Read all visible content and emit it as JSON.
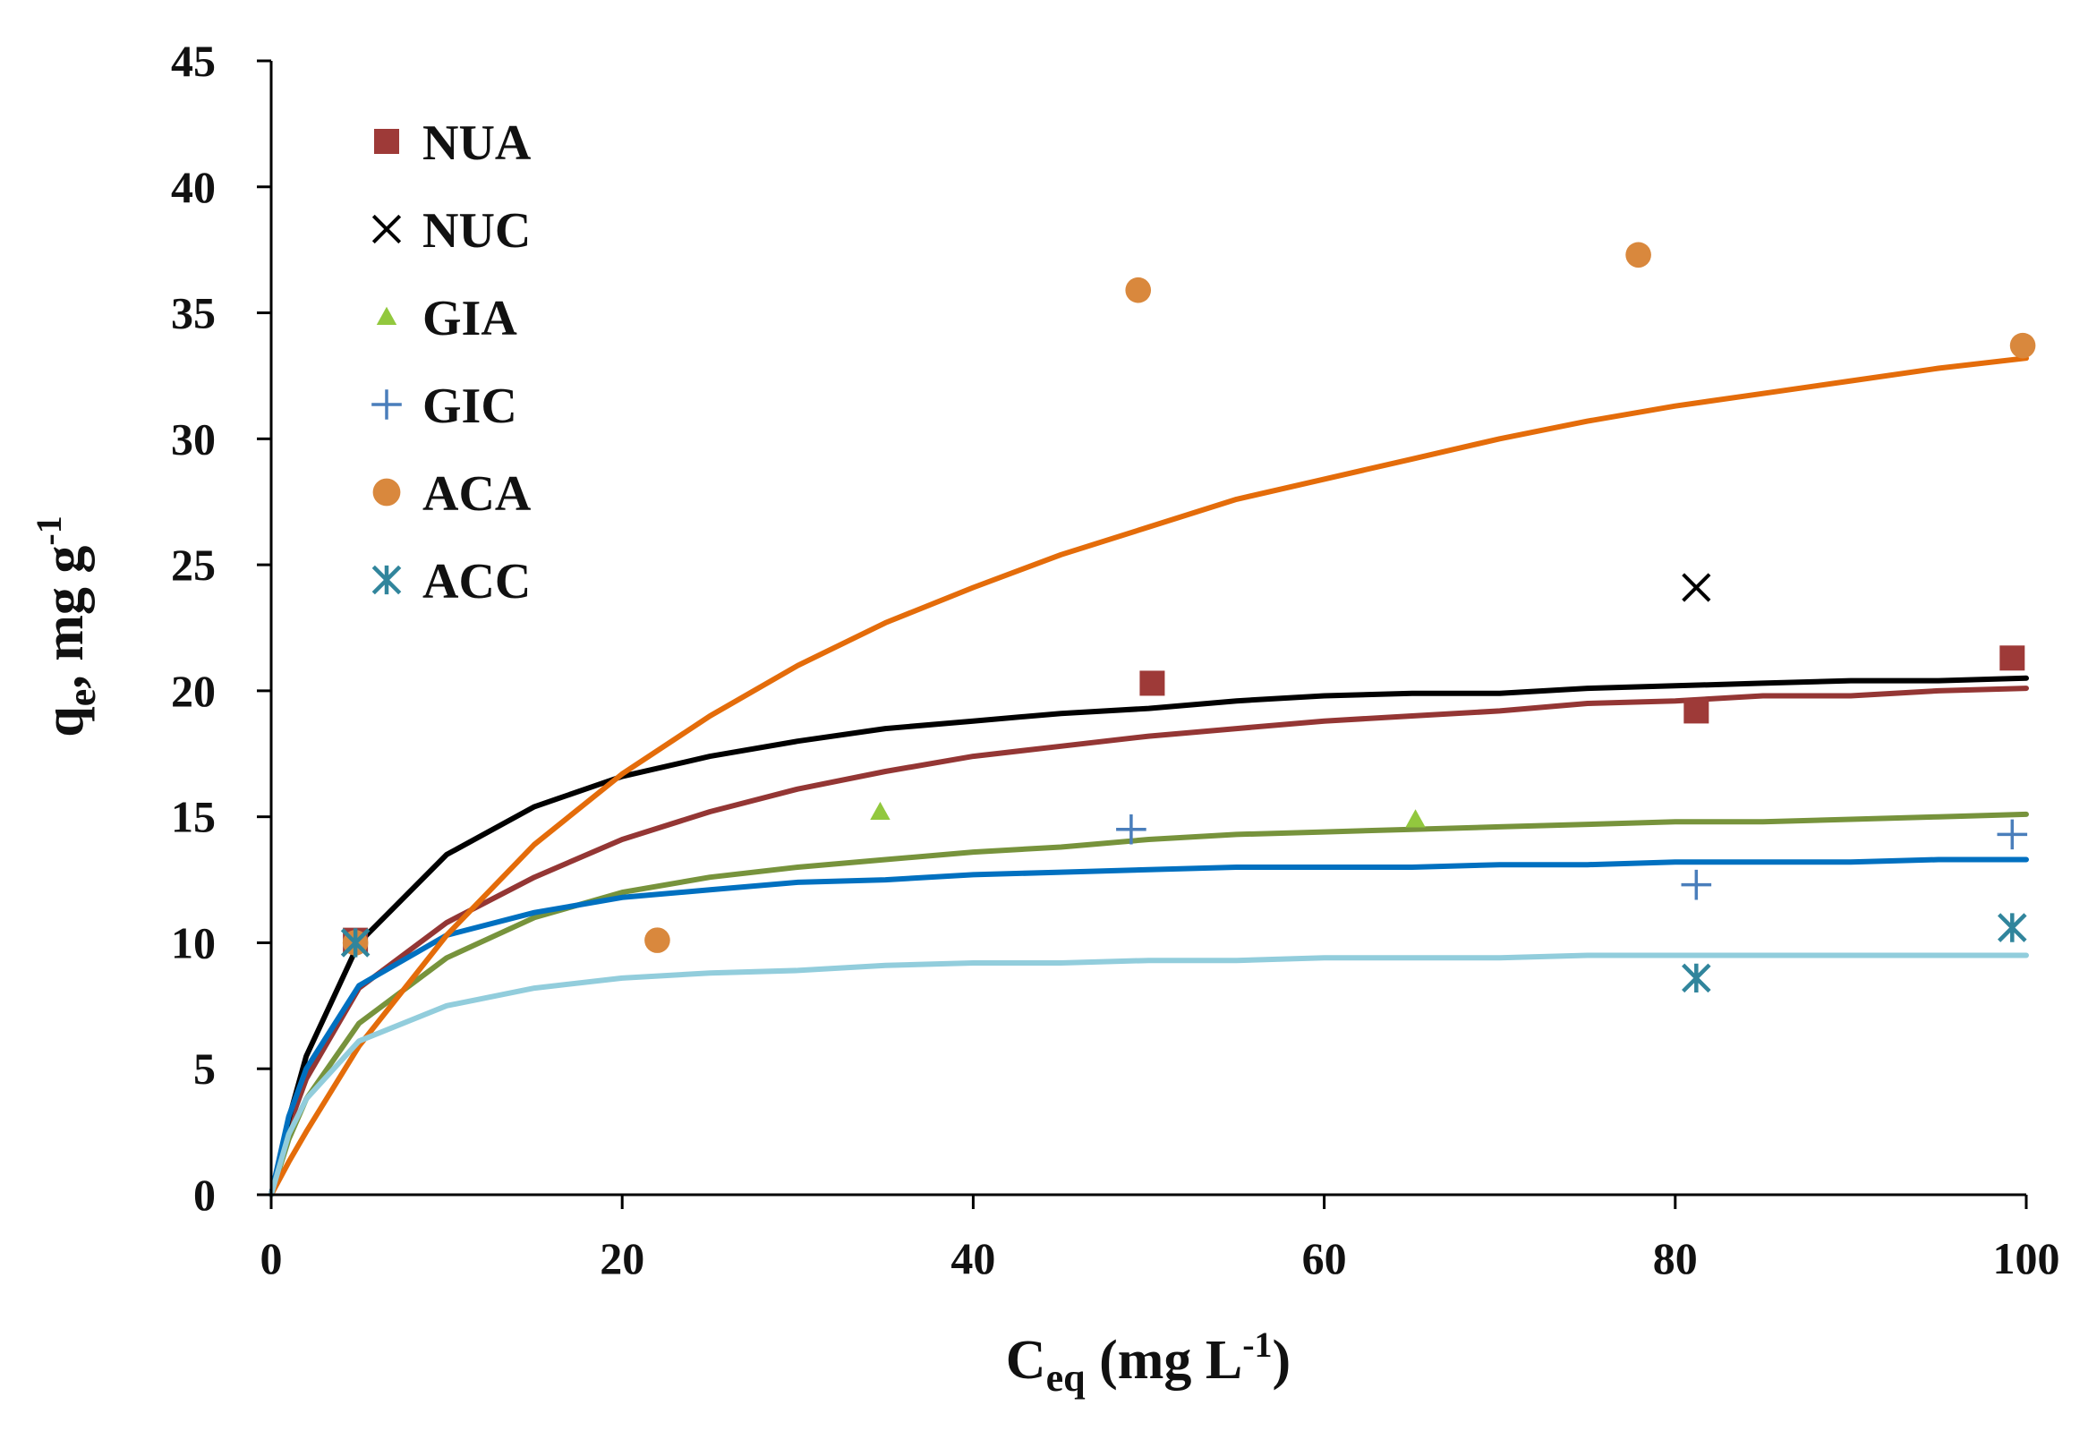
{
  "chart_data": {
    "type": "scatter",
    "xlabel_main": "C",
    "xlabel_sub": "eq",
    "xlabel_rest": " (mg L",
    "xlabel_sup": "-1",
    "xlabel_close": ")",
    "ylabel_main": "q",
    "ylabel_sub": "e",
    "ylabel_rest": ", mg g",
    "ylabel_sup": "-1",
    "xlim": [
      0,
      100
    ],
    "ylim": [
      0,
      45
    ],
    "xticks": [
      0,
      20,
      40,
      60,
      80,
      100
    ],
    "yticks": [
      0,
      5,
      10,
      15,
      20,
      25,
      30,
      35,
      40,
      45
    ],
    "grid": false,
    "legend_position": "top-left",
    "series": [
      {
        "name": "NUA",
        "marker": "square",
        "color": "#9e3a38",
        "points": [
          [
            4.8,
            10.1
          ],
          [
            50.2,
            20.3
          ],
          [
            81.2,
            19.2
          ],
          [
            99.2,
            21.3
          ]
        ],
        "fit_color": "#943634",
        "fit": [
          [
            0,
            0
          ],
          [
            1,
            2.7
          ],
          [
            2,
            4.6
          ],
          [
            5,
            8.2
          ],
          [
            10,
            10.8
          ],
          [
            15,
            12.6
          ],
          [
            20,
            14.1
          ],
          [
            25,
            15.2
          ],
          [
            30,
            16.1
          ],
          [
            35,
            16.8
          ],
          [
            40,
            17.4
          ],
          [
            45,
            17.8
          ],
          [
            50,
            18.2
          ],
          [
            55,
            18.5
          ],
          [
            60,
            18.8
          ],
          [
            65,
            19.0
          ],
          [
            70,
            19.2
          ],
          [
            75,
            19.5
          ],
          [
            80,
            19.6
          ],
          [
            85,
            19.8
          ],
          [
            90,
            19.8
          ],
          [
            95,
            20.0
          ],
          [
            100,
            20.1
          ]
        ]
      },
      {
        "name": "NUC",
        "marker": "x",
        "color": "#000000",
        "points": [
          [
            81.2,
            24.1
          ]
        ],
        "fit_color": "#000000",
        "fit": [
          [
            0,
            0
          ],
          [
            1,
            3.0
          ],
          [
            2,
            5.5
          ],
          [
            5,
            10.0
          ],
          [
            10,
            13.5
          ],
          [
            15,
            15.4
          ],
          [
            20,
            16.6
          ],
          [
            25,
            17.4
          ],
          [
            30,
            18.0
          ],
          [
            35,
            18.5
          ],
          [
            40,
            18.8
          ],
          [
            45,
            19.1
          ],
          [
            50,
            19.3
          ],
          [
            55,
            19.6
          ],
          [
            60,
            19.8
          ],
          [
            65,
            19.9
          ],
          [
            70,
            19.9
          ],
          [
            75,
            20.1
          ],
          [
            80,
            20.2
          ],
          [
            85,
            20.3
          ],
          [
            90,
            20.4
          ],
          [
            95,
            20.4
          ],
          [
            100,
            20.5
          ]
        ]
      },
      {
        "name": "GIA",
        "marker": "triangle",
        "color": "#92c83e",
        "points": [
          [
            34.7,
            15.2
          ],
          [
            65.2,
            14.9
          ]
        ],
        "fit_color": "#77933c",
        "fit": [
          [
            0,
            0
          ],
          [
            1,
            2.2
          ],
          [
            2,
            3.8
          ],
          [
            5,
            6.8
          ],
          [
            10,
            9.4
          ],
          [
            15,
            11.0
          ],
          [
            20,
            12.0
          ],
          [
            25,
            12.6
          ],
          [
            30,
            13.0
          ],
          [
            35,
            13.3
          ],
          [
            40,
            13.6
          ],
          [
            45,
            13.8
          ],
          [
            50,
            14.1
          ],
          [
            55,
            14.3
          ],
          [
            60,
            14.4
          ],
          [
            65,
            14.5
          ],
          [
            70,
            14.6
          ],
          [
            75,
            14.7
          ],
          [
            80,
            14.8
          ],
          [
            85,
            14.8
          ],
          [
            90,
            14.9
          ],
          [
            95,
            15.0
          ],
          [
            100,
            15.1
          ]
        ]
      },
      {
        "name": "GIC",
        "marker": "plus",
        "color": "#4a7ebb",
        "points": [
          [
            49.0,
            14.5
          ],
          [
            81.2,
            12.3
          ],
          [
            99.2,
            14.3
          ]
        ],
        "fit_color": "#0070c0",
        "fit": [
          [
            0,
            0
          ],
          [
            1,
            3.1
          ],
          [
            2,
            5.0
          ],
          [
            5,
            8.3
          ],
          [
            10,
            10.3
          ],
          [
            15,
            11.2
          ],
          [
            20,
            11.8
          ],
          [
            25,
            12.1
          ],
          [
            30,
            12.4
          ],
          [
            35,
            12.5
          ],
          [
            40,
            12.7
          ],
          [
            45,
            12.8
          ],
          [
            50,
            12.9
          ],
          [
            55,
            13.0
          ],
          [
            60,
            13.0
          ],
          [
            65,
            13.0
          ],
          [
            70,
            13.1
          ],
          [
            75,
            13.1
          ],
          [
            80,
            13.2
          ],
          [
            85,
            13.2
          ],
          [
            90,
            13.2
          ],
          [
            95,
            13.3
          ],
          [
            100,
            13.3
          ]
        ]
      },
      {
        "name": "ACA",
        "marker": "circle",
        "color": "#d9883d",
        "points": [
          [
            4.8,
            10.0
          ],
          [
            22.0,
            10.1
          ],
          [
            49.4,
            35.9
          ],
          [
            77.9,
            37.3
          ],
          [
            99.8,
            33.7
          ]
        ],
        "fit_color": "#e46c0a",
        "fit": [
          [
            0,
            0
          ],
          [
            1,
            1.3
          ],
          [
            2,
            2.5
          ],
          [
            5,
            5.9
          ],
          [
            10,
            10.3
          ],
          [
            15,
            13.9
          ],
          [
            20,
            16.7
          ],
          [
            25,
            19.0
          ],
          [
            30,
            21.0
          ],
          [
            35,
            22.7
          ],
          [
            40,
            24.1
          ],
          [
            45,
            25.4
          ],
          [
            50,
            26.5
          ],
          [
            55,
            27.6
          ],
          [
            60,
            28.4
          ],
          [
            65,
            29.2
          ],
          [
            70,
            30.0
          ],
          [
            75,
            30.7
          ],
          [
            80,
            31.3
          ],
          [
            85,
            31.8
          ],
          [
            90,
            32.3
          ],
          [
            95,
            32.8
          ],
          [
            100,
            33.2
          ]
        ]
      },
      {
        "name": "ACC",
        "marker": "asterisk",
        "color": "#31859c",
        "points": [
          [
            4.8,
            10.0
          ],
          [
            81.2,
            8.6
          ],
          [
            99.2,
            10.6
          ]
        ],
        "fit_color": "#92cddc",
        "fit": [
          [
            0,
            0
          ],
          [
            1,
            2.4
          ],
          [
            2,
            3.8
          ],
          [
            5,
            6.1
          ],
          [
            10,
            7.5
          ],
          [
            15,
            8.2
          ],
          [
            20,
            8.6
          ],
          [
            25,
            8.8
          ],
          [
            30,
            8.9
          ],
          [
            35,
            9.1
          ],
          [
            40,
            9.2
          ],
          [
            45,
            9.2
          ],
          [
            50,
            9.3
          ],
          [
            55,
            9.3
          ],
          [
            60,
            9.4
          ],
          [
            65,
            9.4
          ],
          [
            70,
            9.4
          ],
          [
            75,
            9.5
          ],
          [
            80,
            9.5
          ],
          [
            85,
            9.5
          ],
          [
            90,
            9.5
          ],
          [
            95,
            9.5
          ],
          [
            100,
            9.5
          ]
        ]
      }
    ]
  }
}
